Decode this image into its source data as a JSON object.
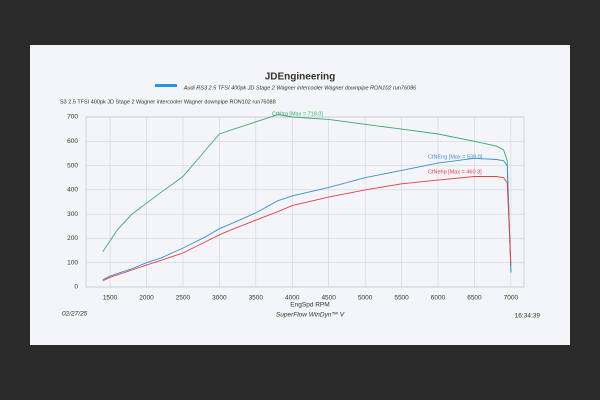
{
  "chart_data": {
    "type": "line",
    "title": "JDEngineering",
    "subtitle": "Audi RS3 2.5 TFSI 400pk  JD Stage 2  Wagner intercooler Wagner downpipe  RON102  run76086",
    "subtitle2": "S3 2.5 TFSI 400pk  JD Stage 2  Wagner intercooler Wagner downpipe  RON102  run76088",
    "x_label": "EngSpd RPM",
    "footer": "SuperFlow WinDyn™ V",
    "date": "02/27/25",
    "time": "16:34:39",
    "annotations": [
      "CtNtrq [Max = 718.0]",
      "CtNEng [Max = 539.0]",
      "CtNehp [Max = 460.3]"
    ],
    "x": [
      1400,
      1500,
      1600,
      1800,
      2000,
      2200,
      2500,
      2800,
      3000,
      3200,
      3500,
      3800,
      4000,
      4500,
      5000,
      5500,
      6000,
      6500,
      6800,
      6900,
      6950,
      7000
    ],
    "series": [
      {
        "name": "CtNtrq",
        "color": "#3aa874",
        "values": [
          145,
          190,
          235,
          300,
          345,
          390,
          455,
          560,
          630,
          650,
          680,
          710,
          700,
          690,
          670,
          650,
          630,
          600,
          580,
          565,
          520,
          60
        ]
      },
      {
        "name": "CtNEng",
        "color": "#3b8fd0",
        "values": [
          30,
          45,
          55,
          75,
          100,
          120,
          160,
          205,
          240,
          265,
          305,
          355,
          375,
          410,
          450,
          480,
          510,
          530,
          525,
          520,
          500,
          60
        ]
      },
      {
        "name": "CtNehp",
        "color": "#e0404a",
        "values": [
          25,
          40,
          50,
          70,
          90,
          110,
          140,
          185,
          215,
          240,
          275,
          310,
          335,
          370,
          400,
          425,
          440,
          455,
          455,
          450,
          430,
          90
        ]
      }
    ],
    "xlim": [
      1170,
      7180
    ],
    "ylim": [
      0,
      700
    ],
    "xticks": [
      1500,
      2000,
      2500,
      3000,
      3500,
      4000,
      4500,
      5000,
      5500,
      6000,
      6500,
      7000
    ],
    "yticks": [
      0,
      100,
      200,
      300,
      400,
      500,
      600,
      700
    ],
    "grid": true
  }
}
